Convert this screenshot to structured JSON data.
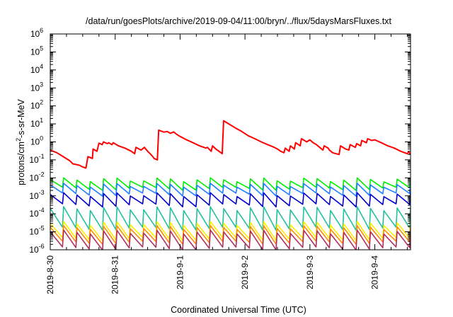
{
  "chart_data": {
    "type": "line",
    "title": "/data/run/goesPlots/archive/2019-09-04/11:00/bryn/../flux/5daysMarsFluxes.txt",
    "xlabel": "Coordinated Universal Time (UTC)",
    "ylabel": {
      "pre": "protons/cm",
      "sup": "2",
      "post": "-s-sr-MeV"
    },
    "yscale": "log",
    "ylim": [
      1e-06,
      1000000.0
    ],
    "xlim": [
      0,
      5.55
    ],
    "x_ticks": [
      {
        "x": 0,
        "label": "2019-8-30"
      },
      {
        "x": 1,
        "label": "2019-8-31"
      },
      {
        "x": 2,
        "label": "2019-9-1"
      },
      {
        "x": 3,
        "label": "2019-9-2"
      },
      {
        "x": 4,
        "label": "2019-9-3"
      },
      {
        "x": 5,
        "label": "2019-9-4"
      }
    ],
    "y_ticks": [
      {
        "v": -6,
        "base": "10",
        "exp": "-6"
      },
      {
        "v": -5,
        "base": "10",
        "exp": "-5"
      },
      {
        "v": -4,
        "base": "10",
        "exp": "-4"
      },
      {
        "v": -3,
        "base": "10",
        "exp": "-3"
      },
      {
        "v": -2,
        "base": "10",
        "exp": "-2"
      },
      {
        "v": -1,
        "base": "10",
        "exp": "-1"
      },
      {
        "v": 0,
        "base": "10",
        "exp": "0"
      },
      {
        "v": 1,
        "base": "10",
        "exp": "1"
      },
      {
        "v": 2,
        "base": "10",
        "exp": "2"
      },
      {
        "v": 3,
        "base": "10",
        "exp": "3"
      },
      {
        "v": 4,
        "base": "10",
        "exp": "4"
      },
      {
        "v": 5,
        "base": "10",
        "exp": "5"
      },
      {
        "v": 6,
        "base": "10",
        "exp": "6"
      }
    ],
    "grid": false,
    "legend": "none",
    "series": [
      {
        "color": "#ff0000",
        "width": 2,
        "points": [
          [
            0,
            0.35
          ],
          [
            0.1,
            0.25
          ],
          [
            0.2,
            0.15
          ],
          [
            0.3,
            0.09
          ],
          [
            0.35,
            0.06
          ],
          [
            0.4,
            0.055
          ],
          [
            0.45,
            0.05
          ],
          [
            0.5,
            0.04
          ],
          [
            0.55,
            0.035
          ],
          [
            0.58,
            0.15
          ],
          [
            0.65,
            0.12
          ],
          [
            0.66,
            0.4
          ],
          [
            0.72,
            0.3
          ],
          [
            0.75,
            0.85
          ],
          [
            0.8,
            0.7
          ],
          [
            0.82,
            1.0
          ],
          [
            0.88,
            0.8
          ],
          [
            0.9,
            0.9
          ],
          [
            0.95,
            0.7
          ],
          [
            0.97,
            0.9
          ],
          [
            1.05,
            0.6
          ],
          [
            1.15,
            0.45
          ],
          [
            1.25,
            0.3
          ],
          [
            1.3,
            0.22
          ],
          [
            1.32,
            0.5
          ],
          [
            1.4,
            0.35
          ],
          [
            1.45,
            0.5
          ],
          [
            1.5,
            0.3
          ],
          [
            1.55,
            0.2
          ],
          [
            1.58,
            0.15
          ],
          [
            1.6,
            0.12
          ],
          [
            1.65,
            0.1
          ],
          [
            1.67,
            4.5
          ],
          [
            1.75,
            3.5
          ],
          [
            1.8,
            3.8
          ],
          [
            1.85,
            3.0
          ],
          [
            1.9,
            3.6
          ],
          [
            1.95,
            2.6
          ],
          [
            2.0,
            2.0
          ],
          [
            2.1,
            1.3
          ],
          [
            2.2,
            0.9
          ],
          [
            2.3,
            0.6
          ],
          [
            2.4,
            0.45
          ],
          [
            2.42,
            0.5
          ],
          [
            2.48,
            0.3
          ],
          [
            2.5,
            0.6
          ],
          [
            2.55,
            0.4
          ],
          [
            2.6,
            0.3
          ],
          [
            2.65,
            0.22
          ],
          [
            2.67,
            15
          ],
          [
            2.75,
            10
          ],
          [
            2.85,
            6
          ],
          [
            2.95,
            3.8
          ],
          [
            3.05,
            2.2
          ],
          [
            3.15,
            1.5
          ],
          [
            3.25,
            1.0
          ],
          [
            3.35,
            0.7
          ],
          [
            3.45,
            0.5
          ],
          [
            3.5,
            0.4
          ],
          [
            3.55,
            0.3
          ],
          [
            3.6,
            0.25
          ],
          [
            3.62,
            0.45
          ],
          [
            3.68,
            0.3
          ],
          [
            3.7,
            0.6
          ],
          [
            3.76,
            0.4
          ],
          [
            3.78,
            0.9
          ],
          [
            3.85,
            0.6
          ],
          [
            3.87,
            1.5
          ],
          [
            3.95,
            1.0
          ],
          [
            4.0,
            1.3
          ],
          [
            4.05,
            0.9
          ],
          [
            4.1,
            0.7
          ],
          [
            4.15,
            0.5
          ],
          [
            4.2,
            0.35
          ],
          [
            4.22,
            0.6
          ],
          [
            4.28,
            0.45
          ],
          [
            4.3,
            0.35
          ],
          [
            4.35,
            0.25
          ],
          [
            4.4,
            0.22
          ],
          [
            4.45,
            0.2
          ],
          [
            4.47,
            0.6
          ],
          [
            4.55,
            0.4
          ],
          [
            4.6,
            0.35
          ],
          [
            4.62,
            0.7
          ],
          [
            4.7,
            0.5
          ],
          [
            4.72,
            0.8
          ],
          [
            4.78,
            0.6
          ],
          [
            4.8,
            1.2
          ],
          [
            4.87,
            0.9
          ],
          [
            4.89,
            1.5
          ],
          [
            4.95,
            1.2
          ],
          [
            5.0,
            1.3
          ],
          [
            5.1,
            0.9
          ],
          [
            5.2,
            0.6
          ],
          [
            5.3,
            0.45
          ],
          [
            5.4,
            0.3
          ],
          [
            5.5,
            0.22
          ],
          [
            5.52,
            0.28
          ],
          [
            5.55,
            0.2
          ]
        ]
      },
      {
        "color": "#00ee00",
        "width": 1.6,
        "peaks": 0.008,
        "troughs": 0.0025,
        "teeth": 27
      },
      {
        "color": "#1e7fff",
        "width": 1.6,
        "peaks": 0.004,
        "troughs": 0.0012,
        "teeth": 27
      },
      {
        "color": "#0000cd",
        "width": 1.6,
        "peaks": 0.0012,
        "troughs": 0.0003,
        "teeth": 27
      },
      {
        "color": "#20c0a0",
        "width": 1.6,
        "peaks": 0.0002,
        "troughs": 1.5e-05,
        "teeth": 27
      },
      {
        "color": "#ffee00",
        "width": 1.6,
        "peaks": 3e-05,
        "troughs": 4e-06,
        "teeth": 27
      },
      {
        "color": "#ff8c00",
        "width": 1.6,
        "peaks": 1.8e-05,
        "troughs": 2.5e-06,
        "teeth": 27
      },
      {
        "color": "#b03060",
        "width": 1.6,
        "peaks": 1e-05,
        "troughs": 1.2e-06,
        "teeth": 27
      }
    ]
  }
}
